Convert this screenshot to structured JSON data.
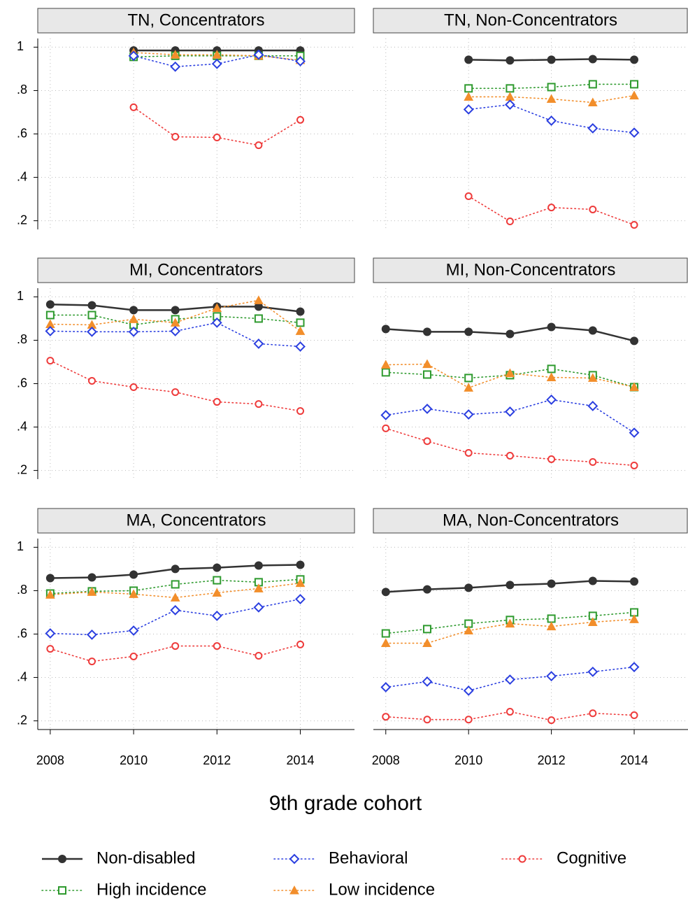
{
  "xlabel": "9th grade cohort",
  "chart_data": [
    {
      "type": "line",
      "title": "TN, Concentrators",
      "x": [
        2008,
        2009,
        2010,
        2011,
        2012,
        2013,
        2014
      ],
      "xlim": [
        2007.7,
        2015.3
      ],
      "xticks": [
        2008,
        2010,
        2012,
        2014
      ],
      "ylim": [
        0.16,
        1.04
      ],
      "yticks": [
        {
          "value": 0.2,
          "label": ".2"
        },
        {
          "value": 0.4,
          "label": ".4"
        },
        {
          "value": 0.6,
          "label": ".6"
        },
        {
          "value": 0.8,
          "label": ".8"
        },
        1
      ],
      "grid": true,
      "series": [
        {
          "name": "Non-disabled",
          "color": "#333333",
          "marker": "circle-filled",
          "line_style": "solid",
          "values": [
            null,
            null,
            0.985,
            0.985,
            0.985,
            0.985,
            0.985
          ]
        },
        {
          "name": "High incidence",
          "color": "#2e9a2e",
          "marker": "square",
          "line_style": "dotted",
          "values": [
            null,
            null,
            0.955,
            0.96,
            0.96,
            0.96,
            0.96
          ]
        },
        {
          "name": "Low incidence",
          "color": "#f28e2b",
          "marker": "triangle",
          "line_style": "dotted",
          "values": [
            null,
            null,
            0.975,
            0.965,
            0.965,
            0.96,
            0.94
          ]
        },
        {
          "name": "Behavioral",
          "color": "#2b3fe0",
          "marker": "diamond",
          "line_style": "dotted",
          "values": [
            null,
            null,
            0.96,
            0.91,
            0.923,
            0.965,
            0.935
          ]
        },
        {
          "name": "Cognitive",
          "color": "#ee3b3b",
          "marker": "circle",
          "line_style": "dotted",
          "values": [
            null,
            null,
            0.723,
            0.587,
            0.584,
            0.548,
            0.665
          ]
        }
      ]
    },
    {
      "type": "line",
      "title": "TN, Non-Concentrators",
      "x": [
        2008,
        2009,
        2010,
        2011,
        2012,
        2013,
        2014
      ],
      "xlim": [
        2007.7,
        2015.3
      ],
      "xticks": [
        2008,
        2010,
        2012,
        2014
      ],
      "ylim": [
        0.16,
        1.04
      ],
      "yticks": [
        {
          "value": 0.2,
          "label": ".2"
        },
        {
          "value": 0.4,
          "label": ".4"
        },
        {
          "value": 0.6,
          "label": ".6"
        },
        {
          "value": 0.8,
          "label": ".8"
        },
        1
      ],
      "grid": true,
      "series": [
        {
          "name": "Non-disabled",
          "color": "#333333",
          "marker": "circle-filled",
          "line_style": "solid",
          "values": [
            null,
            null,
            0.942,
            0.939,
            0.942,
            0.945,
            0.942
          ]
        },
        {
          "name": "High incidence",
          "color": "#2e9a2e",
          "marker": "square",
          "line_style": "dotted",
          "values": [
            null,
            null,
            0.81,
            0.81,
            0.816,
            0.829,
            0.829
          ]
        },
        {
          "name": "Low incidence",
          "color": "#f28e2b",
          "marker": "triangle",
          "line_style": "dotted",
          "values": [
            null,
            null,
            0.771,
            0.771,
            0.761,
            0.745,
            0.777
          ]
        },
        {
          "name": "Behavioral",
          "color": "#2b3fe0",
          "marker": "diamond",
          "line_style": "dotted",
          "values": [
            null,
            null,
            0.713,
            0.735,
            0.661,
            0.626,
            0.606
          ]
        },
        {
          "name": "Cognitive",
          "color": "#ee3b3b",
          "marker": "circle",
          "line_style": "dotted",
          "values": [
            null,
            null,
            0.313,
            0.197,
            0.261,
            0.252,
            0.181
          ]
        }
      ]
    },
    {
      "type": "line",
      "title": "MI, Concentrators",
      "x": [
        2008,
        2009,
        2010,
        2011,
        2012,
        2013,
        2014
      ],
      "xlim": [
        2007.7,
        2015.3
      ],
      "xticks": [
        2008,
        2010,
        2012,
        2014
      ],
      "ylim": [
        0.16,
        1.04
      ],
      "yticks": [
        {
          "value": 0.2,
          "label": ".2"
        },
        {
          "value": 0.4,
          "label": ".4"
        },
        {
          "value": 0.6,
          "label": ".6"
        },
        {
          "value": 0.8,
          "label": ".8"
        },
        1
      ],
      "grid": true,
      "series": [
        {
          "name": "Non-disabled",
          "color": "#333333",
          "marker": "circle-filled",
          "line_style": "solid",
          "values": [
            0.965,
            0.961,
            0.939,
            0.939,
            0.955,
            0.955,
            0.932
          ]
        },
        {
          "name": "High incidence",
          "color": "#2e9a2e",
          "marker": "square",
          "line_style": "dotted",
          "values": [
            0.916,
            0.916,
            0.871,
            0.897,
            0.91,
            0.9,
            0.881
          ]
        },
        {
          "name": "Low incidence",
          "color": "#f28e2b",
          "marker": "triangle",
          "line_style": "dotted",
          "values": [
            0.874,
            0.871,
            0.897,
            0.881,
            0.948,
            0.984,
            0.842
          ]
        },
        {
          "name": "Behavioral",
          "color": "#2b3fe0",
          "marker": "diamond",
          "line_style": "dotted",
          "values": [
            0.842,
            0.839,
            0.839,
            0.842,
            0.881,
            0.784,
            0.771
          ]
        },
        {
          "name": "Cognitive",
          "color": "#ee3b3b",
          "marker": "circle",
          "line_style": "dotted",
          "values": [
            0.706,
            0.613,
            0.584,
            0.561,
            0.516,
            0.506,
            0.474
          ]
        }
      ]
    },
    {
      "type": "line",
      "title": "MI, Non-Concentrators",
      "x": [
        2008,
        2009,
        2010,
        2011,
        2012,
        2013,
        2014
      ],
      "xlim": [
        2007.7,
        2015.3
      ],
      "xticks": [
        2008,
        2010,
        2012,
        2014
      ],
      "ylim": [
        0.16,
        1.04
      ],
      "yticks": [
        {
          "value": 0.2,
          "label": ".2"
        },
        {
          "value": 0.4,
          "label": ".4"
        },
        {
          "value": 0.6,
          "label": ".6"
        },
        {
          "value": 0.8,
          "label": ".8"
        },
        1
      ],
      "grid": true,
      "series": [
        {
          "name": "Non-disabled",
          "color": "#333333",
          "marker": "circle-filled",
          "line_style": "solid",
          "values": [
            0.852,
            0.839,
            0.839,
            0.829,
            0.861,
            0.845,
            0.797
          ]
        },
        {
          "name": "High incidence",
          "color": "#2e9a2e",
          "marker": "square",
          "line_style": "dotted",
          "values": [
            0.652,
            0.642,
            0.626,
            0.639,
            0.668,
            0.639,
            0.584
          ]
        },
        {
          "name": "Low incidence",
          "color": "#f28e2b",
          "marker": "triangle",
          "line_style": "dotted",
          "values": [
            0.687,
            0.69,
            0.581,
            0.648,
            0.629,
            0.626,
            0.584
          ]
        },
        {
          "name": "Behavioral",
          "color": "#2b3fe0",
          "marker": "diamond",
          "line_style": "dotted",
          "values": [
            0.455,
            0.484,
            0.458,
            0.471,
            0.526,
            0.497,
            0.374
          ]
        },
        {
          "name": "Cognitive",
          "color": "#ee3b3b",
          "marker": "circle",
          "line_style": "dotted",
          "values": [
            0.394,
            0.335,
            0.281,
            0.268,
            0.252,
            0.239,
            0.223
          ]
        }
      ]
    },
    {
      "type": "line",
      "title": "MA, Concentrators",
      "x": [
        2008,
        2009,
        2010,
        2011,
        2012,
        2013,
        2014
      ],
      "xlim": [
        2007.7,
        2015.3
      ],
      "xticks": [
        2008,
        2010,
        2012,
        2014
      ],
      "ylim": [
        0.16,
        1.04
      ],
      "yticks": [
        {
          "value": 0.2,
          "label": ".2"
        },
        {
          "value": 0.4,
          "label": ".4"
        },
        {
          "value": 0.6,
          "label": ".6"
        },
        {
          "value": 0.8,
          "label": ".8"
        },
        1
      ],
      "grid": true,
      "series": [
        {
          "name": "Non-disabled",
          "color": "#333333",
          "marker": "circle-filled",
          "line_style": "solid",
          "values": [
            0.858,
            0.861,
            0.874,
            0.9,
            0.906,
            0.916,
            0.919
          ]
        },
        {
          "name": "High incidence",
          "color": "#2e9a2e",
          "marker": "square",
          "line_style": "dotted",
          "values": [
            0.787,
            0.797,
            0.8,
            0.829,
            0.848,
            0.839,
            0.852
          ]
        },
        {
          "name": "Low incidence",
          "color": "#f28e2b",
          "marker": "triangle",
          "line_style": "dotted",
          "values": [
            0.781,
            0.794,
            0.784,
            0.768,
            0.79,
            0.81,
            0.835
          ]
        },
        {
          "name": "Behavioral",
          "color": "#2b3fe0",
          "marker": "diamond",
          "line_style": "dotted",
          "values": [
            0.603,
            0.597,
            0.616,
            0.71,
            0.684,
            0.723,
            0.761
          ]
        },
        {
          "name": "Cognitive",
          "color": "#ee3b3b",
          "marker": "circle",
          "line_style": "dotted",
          "values": [
            0.532,
            0.474,
            0.497,
            0.545,
            0.545,
            0.5,
            0.552
          ]
        }
      ]
    },
    {
      "type": "line",
      "title": "MA, Non-Concentrators",
      "x": [
        2008,
        2009,
        2010,
        2011,
        2012,
        2013,
        2014
      ],
      "xlim": [
        2007.7,
        2015.3
      ],
      "xticks": [
        2008,
        2010,
        2012,
        2014
      ],
      "ylim": [
        0.16,
        1.04
      ],
      "yticks": [
        {
          "value": 0.2,
          "label": ".2"
        },
        {
          "value": 0.4,
          "label": ".4"
        },
        {
          "value": 0.6,
          "label": ".6"
        },
        {
          "value": 0.8,
          "label": ".8"
        },
        1
      ],
      "grid": true,
      "series": [
        {
          "name": "Non-disabled",
          "color": "#333333",
          "marker": "circle-filled",
          "line_style": "solid",
          "values": [
            0.794,
            0.806,
            0.813,
            0.826,
            0.832,
            0.845,
            0.842
          ]
        },
        {
          "name": "High incidence",
          "color": "#2e9a2e",
          "marker": "square",
          "line_style": "dotted",
          "values": [
            0.603,
            0.623,
            0.648,
            0.665,
            0.671,
            0.684,
            0.7
          ]
        },
        {
          "name": "Low incidence",
          "color": "#f28e2b",
          "marker": "triangle",
          "line_style": "dotted",
          "values": [
            0.558,
            0.558,
            0.616,
            0.648,
            0.635,
            0.655,
            0.668
          ]
        },
        {
          "name": "Behavioral",
          "color": "#2b3fe0",
          "marker": "diamond",
          "line_style": "dotted",
          "values": [
            0.355,
            0.381,
            0.339,
            0.39,
            0.406,
            0.426,
            0.448
          ]
        },
        {
          "name": "Cognitive",
          "color": "#ee3b3b",
          "marker": "circle",
          "line_style": "dotted",
          "values": [
            0.219,
            0.206,
            0.206,
            0.242,
            0.203,
            0.235,
            0.226
          ]
        }
      ]
    }
  ]
}
